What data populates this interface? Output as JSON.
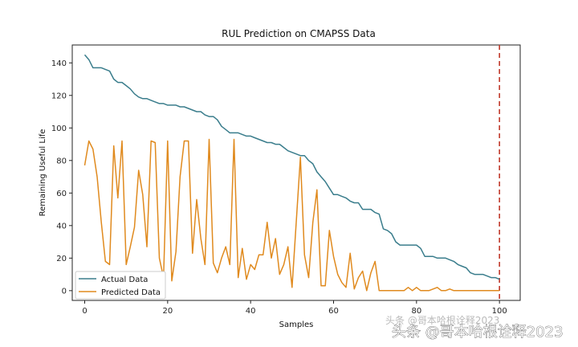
{
  "chart_data": {
    "type": "line",
    "title": "RUL Prediction on CMAPSS Data",
    "xlabel": "Samples",
    "ylabel": "Remaining Useful Life",
    "xlim": [
      -3,
      105
    ],
    "ylim": [
      -6,
      151
    ],
    "xticks": [
      0,
      20,
      40,
      60,
      80,
      100
    ],
    "yticks": [
      0,
      20,
      40,
      60,
      80,
      100,
      120,
      140
    ],
    "legend": "lower-left",
    "grid": false,
    "vline": {
      "x": 100,
      "color": "#c0392b",
      "style": "dashed"
    },
    "series": [
      {
        "name": "Actual Data",
        "color": "#3a7d8c",
        "x": [
          0,
          1,
          2,
          3,
          4,
          5,
          6,
          7,
          8,
          9,
          10,
          11,
          12,
          13,
          14,
          15,
          16,
          17,
          18,
          19,
          20,
          21,
          22,
          23,
          24,
          25,
          26,
          27,
          28,
          29,
          30,
          31,
          32,
          33,
          34,
          35,
          36,
          37,
          38,
          39,
          40,
          41,
          42,
          43,
          44,
          45,
          46,
          47,
          48,
          49,
          50,
          51,
          52,
          53,
          54,
          55,
          56,
          57,
          58,
          59,
          60,
          61,
          62,
          63,
          64,
          65,
          66,
          67,
          68,
          69,
          70,
          71,
          72,
          73,
          74,
          75,
          76,
          77,
          78,
          79,
          80,
          81,
          82,
          83,
          84,
          85,
          86,
          87,
          88,
          89,
          90,
          91,
          92,
          93,
          94,
          95,
          96,
          97,
          98,
          99,
          100
        ],
        "values": [
          145,
          142,
          137,
          137,
          137,
          136,
          135,
          130,
          128,
          128,
          126,
          124,
          121,
          119,
          118,
          118,
          117,
          116,
          115,
          115,
          114,
          114,
          114,
          113,
          113,
          112,
          111,
          110,
          110,
          108,
          107,
          107,
          105,
          101,
          99,
          97,
          97,
          97,
          96,
          95,
          95,
          94,
          93,
          92,
          91,
          91,
          90,
          90,
          88,
          86,
          85,
          84,
          83,
          83,
          80,
          78,
          73,
          70,
          67,
          63,
          59,
          59,
          58,
          57,
          55,
          54,
          54,
          50,
          50,
          50,
          48,
          47,
          38,
          37,
          35,
          30,
          28,
          28,
          28,
          28,
          28,
          26,
          21,
          21,
          21,
          20,
          20,
          20,
          19,
          18,
          16,
          15,
          14,
          11,
          10,
          10,
          10,
          9,
          8,
          8,
          7
        ]
      },
      {
        "name": "Predicted Data",
        "color": "#e08a1e",
        "x": [
          0,
          1,
          2,
          3,
          4,
          5,
          6,
          7,
          8,
          9,
          10,
          11,
          12,
          13,
          14,
          15,
          16,
          17,
          18,
          19,
          20,
          21,
          22,
          23,
          24,
          25,
          26,
          27,
          28,
          29,
          30,
          31,
          32,
          33,
          34,
          35,
          36,
          37,
          38,
          39,
          40,
          41,
          42,
          43,
          44,
          45,
          46,
          47,
          48,
          49,
          50,
          51,
          52,
          53,
          54,
          55,
          56,
          57,
          58,
          59,
          60,
          61,
          62,
          63,
          64,
          65,
          66,
          67,
          68,
          69,
          70,
          71,
          72,
          73,
          74,
          75,
          76,
          77,
          78,
          79,
          80,
          81,
          82,
          83,
          84,
          85,
          86,
          87,
          88,
          89,
          90,
          91,
          92,
          93,
          94,
          95,
          96,
          97,
          98,
          99,
          100
        ],
        "values": [
          77,
          92,
          87,
          70,
          42,
          18,
          16,
          89,
          57,
          92,
          16,
          27,
          39,
          74,
          59,
          27,
          92,
          91,
          20,
          8,
          92,
          6,
          24,
          70,
          92,
          92,
          23,
          56,
          32,
          16,
          93,
          17,
          11,
          20,
          27,
          16,
          93,
          8,
          26,
          7,
          16,
          13,
          22,
          22,
          42,
          20,
          32,
          10,
          16,
          27,
          2,
          42,
          82,
          22,
          8,
          42,
          62,
          3,
          3,
          37,
          21,
          10,
          5,
          2,
          23,
          1,
          8,
          12,
          0,
          11,
          18,
          0,
          0,
          0,
          0,
          0,
          0,
          0,
          2,
          0,
          2,
          0,
          0,
          0,
          1,
          2,
          0,
          0,
          1,
          0,
          0,
          0,
          0,
          0,
          0,
          0,
          0,
          0,
          0,
          0,
          0
        ]
      }
    ]
  },
  "watermark": {
    "main": "头条 @哥本哈根诠释2023",
    "faint": "头条 @哥本哈根诠释2023"
  }
}
